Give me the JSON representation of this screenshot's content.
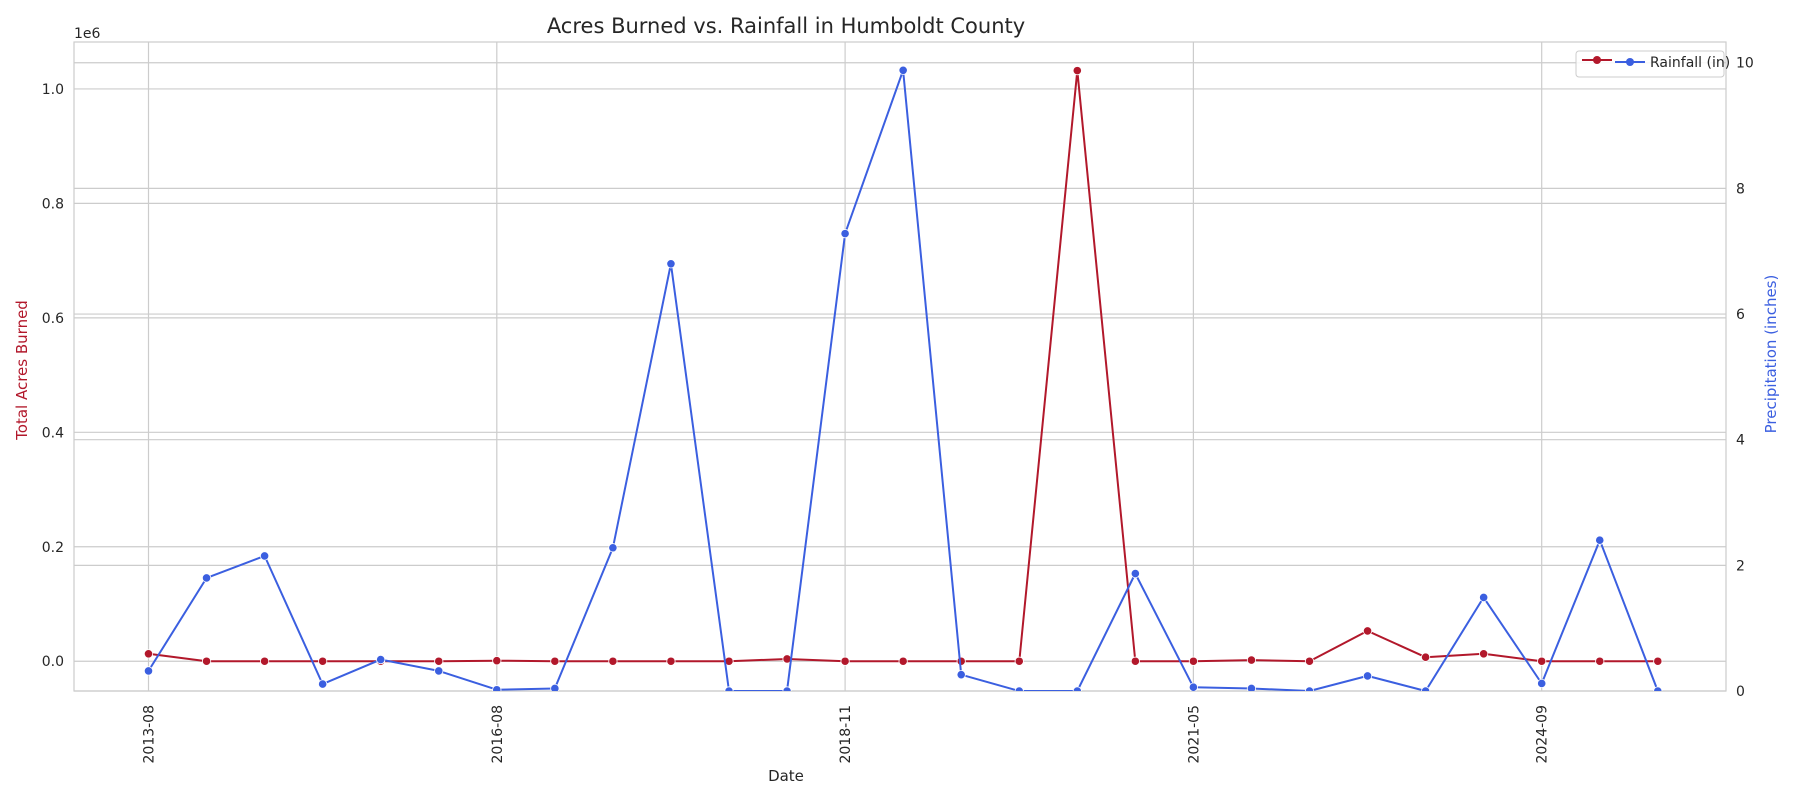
{
  "chart_data": {
    "type": "line",
    "title": "Acres Burned vs. Rainfall in Humboldt County",
    "xlabel": "Date",
    "ylabel_left": "Total Acres Burned",
    "ylabel_right": "Precipitation (inches)",
    "left_axis_offset_label": "1e6",
    "x_tick_labels": [
      "2013-08",
      "2016-08",
      "2018-11",
      "2021-05",
      "2024-09"
    ],
    "x_tick_indices": [
      0,
      6,
      12,
      18,
      24
    ],
    "y_left_ticks": [
      0.0,
      0.2,
      0.4,
      0.6,
      0.8,
      1.0
    ],
    "y_left_lim": [
      -0.052,
      1.082
    ],
    "y_right_ticks": [
      0,
      2,
      4,
      6,
      8,
      10
    ],
    "y_right_lim": [
      0,
      10.33
    ],
    "grid": true,
    "legend_placement": "top-right",
    "colors": {
      "acres": "#b2182b",
      "rain": "#3b5fe0"
    },
    "series": [
      {
        "name": "Acres Burned",
        "axis": "left",
        "color": "#b2182b",
        "values": [
          0.013,
          0.0,
          0.0,
          0.0,
          0.0,
          0.0,
          0.001,
          0.0,
          0.0,
          0.0,
          0.0,
          0.004,
          0.0,
          0.0,
          0.0,
          0.0,
          1.032,
          0.0,
          0.0,
          0.002,
          0.0,
          0.053,
          0.007,
          0.013,
          0.0,
          0.0,
          0.0
        ]
      },
      {
        "name": "Rainfall (in)",
        "axis": "right",
        "color": "#3b5fe0",
        "values": [
          0.32,
          1.8,
          2.15,
          0.11,
          0.5,
          0.32,
          0.02,
          0.04,
          2.28,
          6.8,
          0.0,
          0.0,
          7.28,
          9.88,
          0.26,
          0.0,
          0.0,
          1.87,
          0.06,
          0.04,
          0.0,
          0.24,
          0.0,
          1.49,
          0.12,
          2.4,
          0.0
        ]
      }
    ]
  }
}
